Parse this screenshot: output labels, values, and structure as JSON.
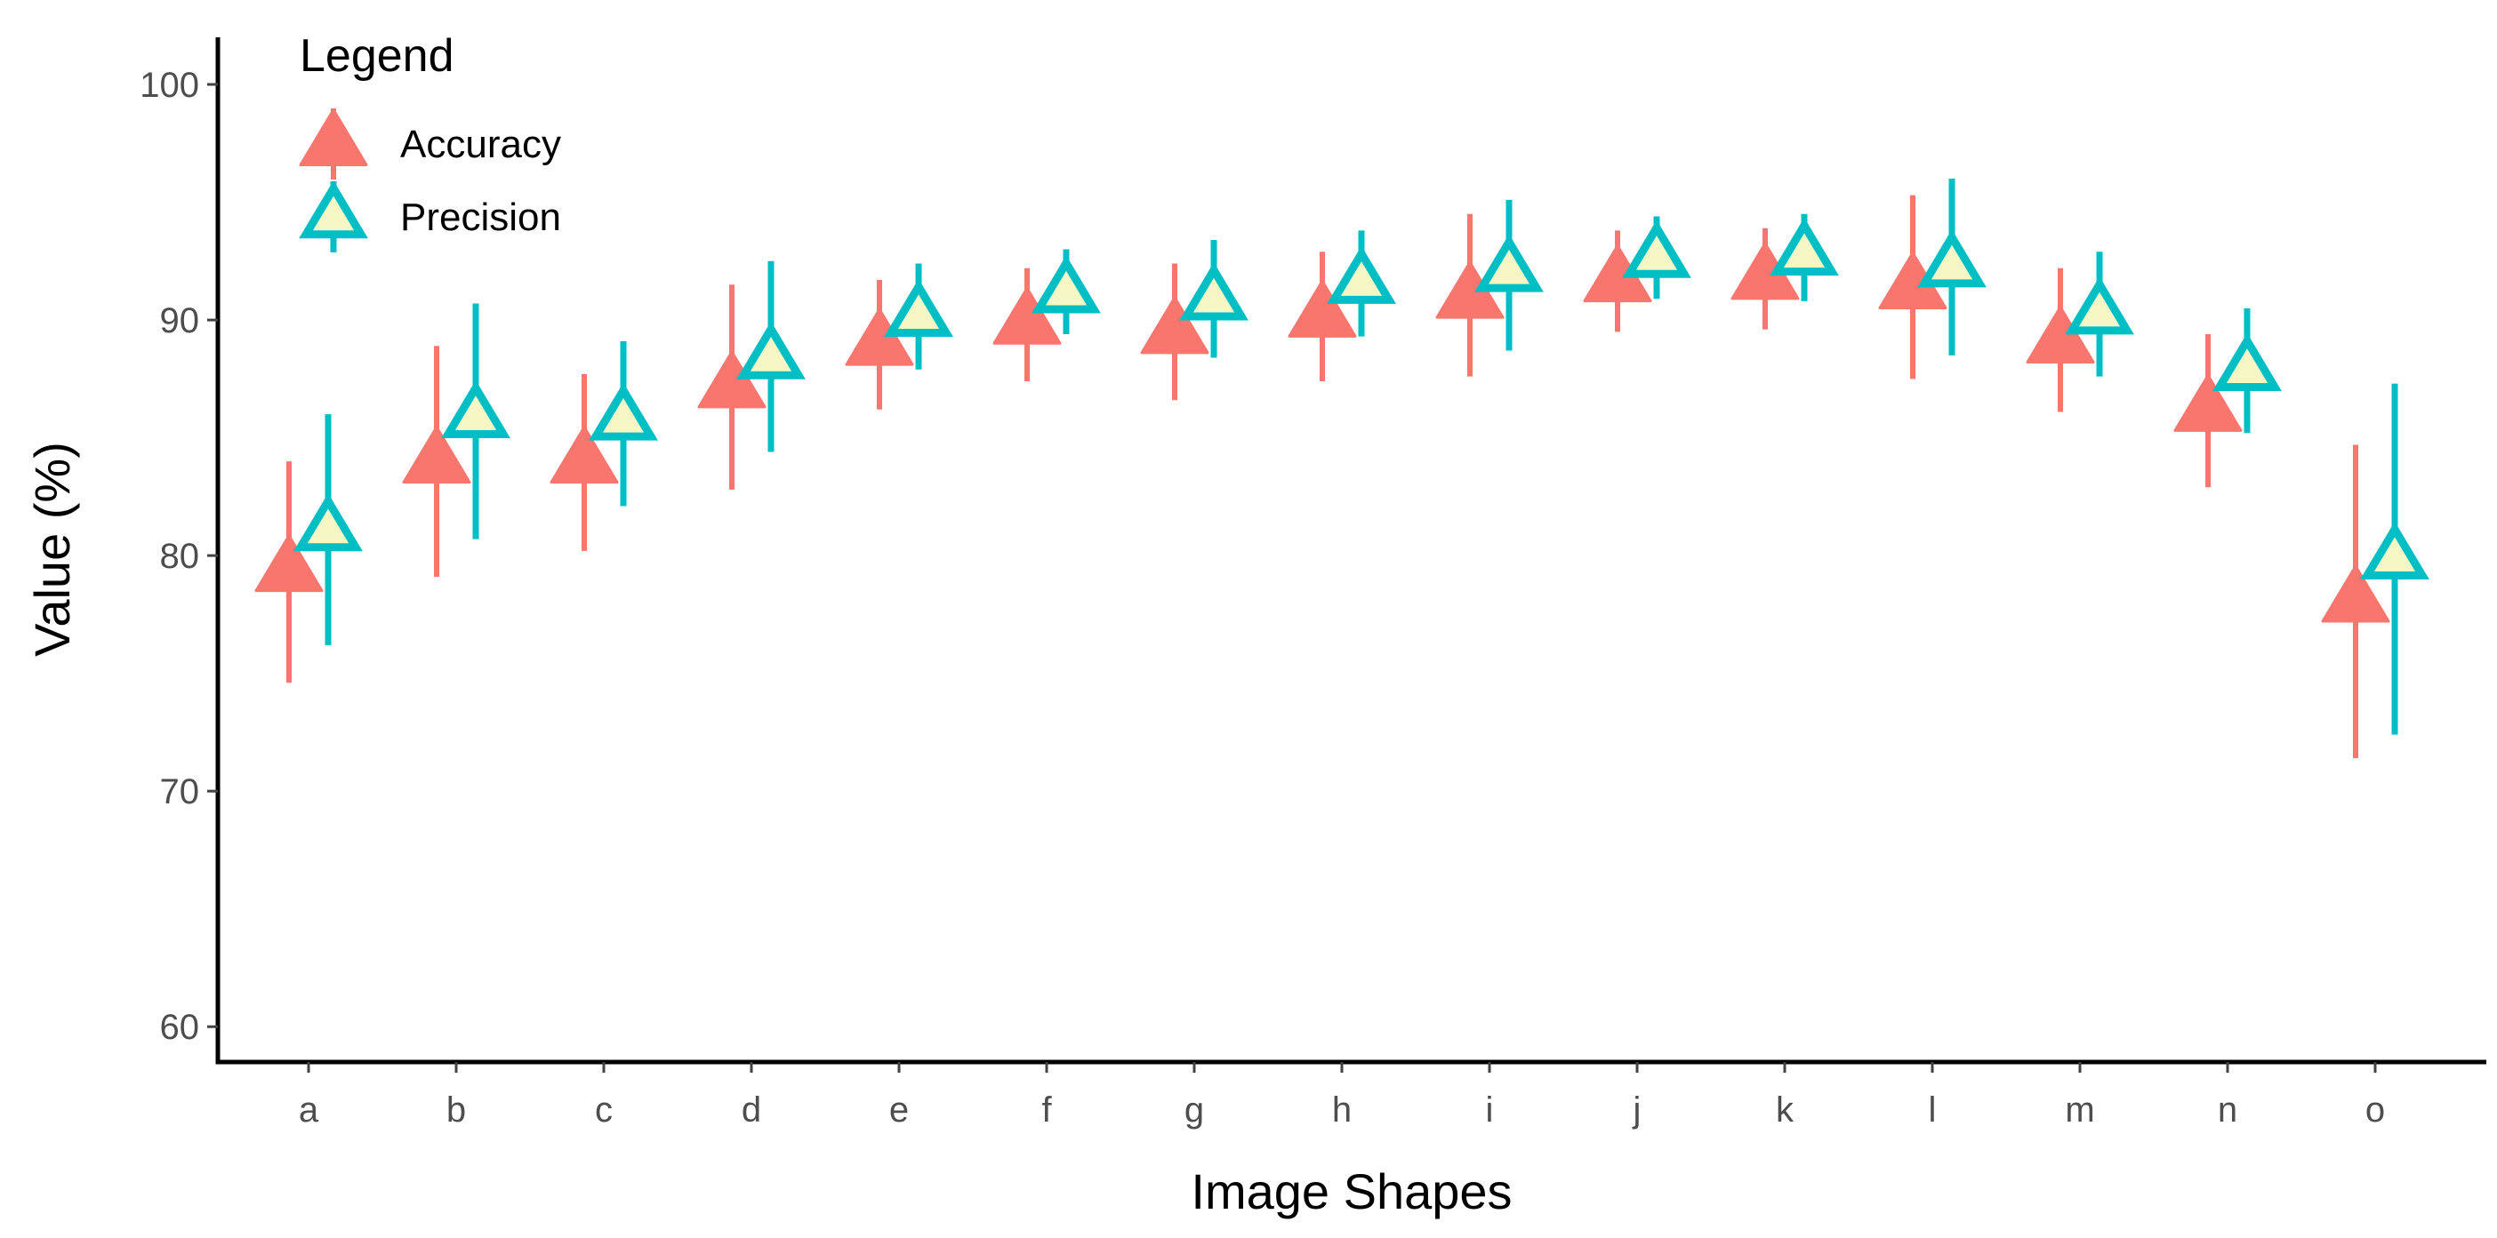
{
  "chart_data": {
    "type": "scatter",
    "xlabel": "Image Shapes",
    "ylabel": "Value (%)",
    "ylim": [
      58.5,
      102
    ],
    "yticks": [
      60,
      70,
      80,
      90,
      100
    ],
    "categories": [
      "a",
      "b",
      "c",
      "d",
      "e",
      "f",
      "g",
      "h",
      "i",
      "j",
      "k",
      "l",
      "m",
      "n",
      "o"
    ],
    "grid": false,
    "legend": {
      "title": "Legend",
      "position": "top-left"
    },
    "series": [
      {
        "name": "Accuracy",
        "color": "#F8766D",
        "marker": "filled-triangle",
        "values": [
          79.4,
          84.0,
          84.0,
          87.2,
          89.0,
          89.9,
          89.5,
          90.2,
          91.0,
          91.7,
          91.8,
          91.4,
          89.1,
          86.2,
          78.1
        ],
        "err_low": [
          74.6,
          79.1,
          80.2,
          82.8,
          86.2,
          87.4,
          86.6,
          87.4,
          87.6,
          89.5,
          89.6,
          87.5,
          86.1,
          82.9,
          71.4
        ],
        "err_high": [
          84.0,
          88.9,
          87.7,
          91.5,
          91.7,
          92.2,
          92.4,
          92.9,
          94.5,
          93.8,
          93.9,
          95.3,
          92.2,
          89.4,
          84.7
        ]
      },
      {
        "name": "Precision",
        "color": "#00BFC4",
        "marker": "open-triangle",
        "fill": "#F7F7C6",
        "values": [
          81.1,
          85.9,
          85.8,
          88.4,
          90.2,
          91.2,
          90.9,
          91.6,
          92.1,
          92.7,
          92.8,
          92.3,
          90.3,
          87.9,
          79.9
        ],
        "err_low": [
          76.2,
          80.7,
          82.1,
          84.4,
          87.9,
          89.4,
          88.4,
          89.3,
          88.7,
          90.9,
          90.8,
          88.5,
          87.6,
          85.2,
          72.4
        ],
        "err_high": [
          86.0,
          90.7,
          89.1,
          92.5,
          92.4,
          93.0,
          93.4,
          93.8,
          95.1,
          94.4,
          94.5,
          96.0,
          92.9,
          90.5,
          87.3
        ]
      }
    ]
  }
}
